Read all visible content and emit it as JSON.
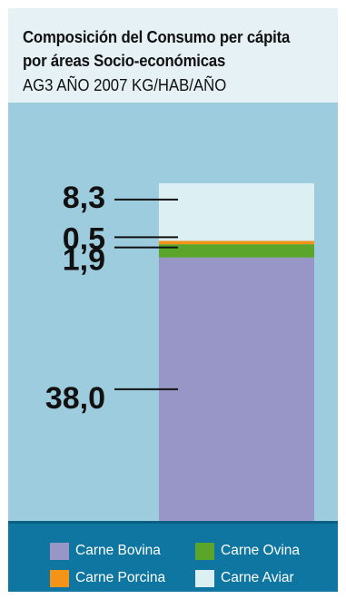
{
  "header": {
    "title_line1": "Composición del Consumo per cápita",
    "title_line2": "por áreas Socio-económicas",
    "subtitle": "AG3 AÑO 2007 KG/HAB/AÑO"
  },
  "colors": {
    "header_bg": "#e5f1f5",
    "plot_bg": "#9dccde",
    "legend_bg": "#0e76a0"
  },
  "chart_data": {
    "type": "bar",
    "stacked": true,
    "unit": "KG/HAB/AÑO",
    "categories": [
      "AG3 AÑO 2007"
    ],
    "series": [
      {
        "name": "Carne Bovina",
        "value": 38.0,
        "label": "38,0",
        "color": "#9796c6"
      },
      {
        "name": "Carne Ovina",
        "value": 1.9,
        "label": "1,9",
        "color": "#5ba52a"
      },
      {
        "name": "Carne Porcina",
        "value": 0.5,
        "label": "0,5",
        "color": "#f39418"
      },
      {
        "name": "Carne Aviar",
        "value": 8.3,
        "label": "8,3",
        "color": "#dcf0f4"
      }
    ],
    "legend_position": "bottom",
    "grid": false
  }
}
